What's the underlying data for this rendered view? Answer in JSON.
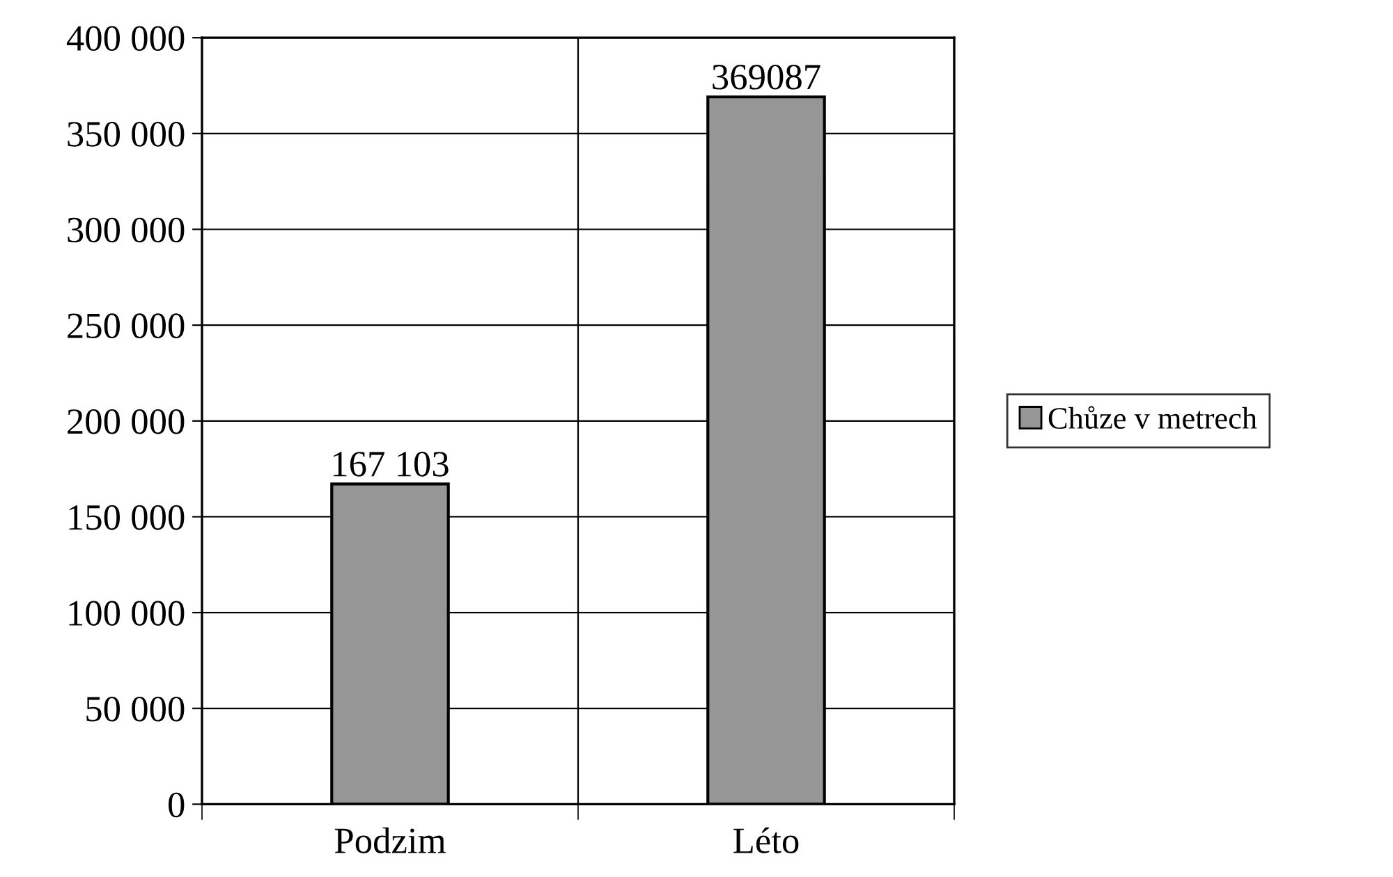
{
  "chart_data": {
    "type": "bar",
    "categories": [
      "Podzim",
      "Léto"
    ],
    "series": [
      {
        "name": "Chůze v metrech",
        "color": "#969696",
        "values": [
          167103,
          369087
        ],
        "value_labels": [
          "167 103",
          "369087"
        ]
      }
    ],
    "ylim": [
      0,
      400000
    ],
    "yticks": [
      0,
      {
        "value": 50000,
        "label": "50 000"
      },
      {
        "value": 100000,
        "label": "100 000"
      },
      {
        "value": 150000,
        "label": "150 000"
      },
      {
        "value": 200000,
        "label": "200 000"
      },
      {
        "value": 250000,
        "label": "250 000"
      },
      {
        "value": 300000,
        "label": "300 000"
      },
      {
        "value": 350000,
        "label": "350 000"
      },
      {
        "value": 400000,
        "label": "400 000"
      }
    ],
    "grid": true,
    "legend": "right"
  }
}
